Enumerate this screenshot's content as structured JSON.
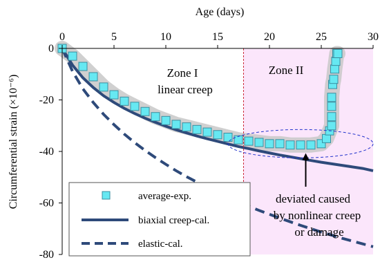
{
  "chart_data": {
    "type": "line",
    "xlabel": "Age (days)",
    "ylabel": "Circumferential strain (×10⁻⁶)",
    "xlim": [
      0,
      30
    ],
    "ylim": [
      -80,
      0
    ],
    "x_ticks": [
      "0",
      "5",
      "10",
      "15",
      "20",
      "25",
      "30"
    ],
    "y_ticks": [
      "0",
      "-20",
      "-40",
      "-60",
      "-80"
    ],
    "x_tick_values": [
      0,
      5,
      10,
      15,
      20,
      25,
      30
    ],
    "y_tick_values": [
      0,
      -20,
      -40,
      -60,
      -80
    ],
    "x_axis_position": "top",
    "grid": false,
    "zone_boundary_x": 17.5,
    "zone2_color": "#fbe6fb",
    "zones": [
      {
        "name": "Zone I",
        "subtitle": "linear creep"
      },
      {
        "name": "Zone II",
        "subtitle": ""
      }
    ],
    "annotation": {
      "lines": [
        "deviated caused",
        "by nonlinear creep",
        "or damage"
      ],
      "arrow_target": [
        23.5,
        -38
      ]
    },
    "ellipse": {
      "center": [
        23,
        -37
      ],
      "rx": 7,
      "ry": 5.5
    },
    "legend_position": "bottom-left",
    "series": [
      {
        "name": "average-exp.",
        "style": "marker-square",
        "color": "#66e8f2",
        "x": [
          0,
          1,
          2,
          3,
          4,
          5,
          6,
          7,
          8,
          9,
          10,
          11,
          12,
          13,
          14,
          15,
          16,
          17,
          18,
          19,
          20,
          21,
          22,
          23,
          24,
          25,
          25.5,
          25.8,
          26,
          26,
          26,
          26,
          26.1,
          26.2,
          26.3,
          26.4,
          26.5,
          26.6
        ],
        "y": [
          0,
          -3,
          -7,
          -11,
          -15,
          -18,
          -20.5,
          -22.5,
          -24.5,
          -26.5,
          -28,
          -29.5,
          -30.5,
          -31.5,
          -32.5,
          -33.5,
          -34.5,
          -35.5,
          -36,
          -36.5,
          -37,
          -37,
          -37.5,
          -37.5,
          -37.5,
          -37,
          -35,
          -32,
          -30,
          -26.5,
          -22.5,
          -19,
          -14,
          -12,
          -8,
          -5,
          -2,
          -2
        ],
        "band_color": "#c8c8c8"
      },
      {
        "name": "biaxial creep-cal.",
        "style": "solid",
        "color": "#2e4a7a",
        "x": [
          0,
          1,
          2,
          3,
          4,
          5,
          6,
          7,
          8,
          9,
          10,
          11,
          12,
          13,
          14,
          15,
          16,
          17,
          18,
          19,
          20,
          21,
          22,
          23,
          24,
          25,
          26,
          27,
          28,
          29,
          30
        ],
        "y": [
          0,
          -6.5,
          -11.4,
          -15.2,
          -18.4,
          -21,
          -23.3,
          -25.3,
          -27.1,
          -28.7,
          -30.2,
          -31.6,
          -32.8,
          -34,
          -35.1,
          -36.1,
          -37.1,
          -38.1,
          -38.9,
          -39.8,
          -40.6,
          -41.4,
          -42.1,
          -42.8,
          -43.5,
          -44.2,
          -44.8,
          -45.4,
          -46,
          -46.6,
          -47.5
        ]
      },
      {
        "name": "elastic-cal.",
        "style": "dashed",
        "color": "#2e4a7a",
        "x": [
          0,
          1,
          2,
          3,
          4,
          5,
          6,
          7,
          8,
          9,
          10,
          11,
          12,
          13,
          14,
          15,
          16,
          17,
          18,
          19,
          20,
          21,
          22,
          23,
          24,
          25,
          26,
          27,
          28,
          29,
          30
        ],
        "y": [
          0,
          -8.9,
          -15.7,
          -21,
          -25.6,
          -29.6,
          -33.3,
          -36.6,
          -39.6,
          -42.4,
          -45,
          -47.5,
          -49.8,
          -51.9,
          -54,
          -55.9,
          -57.8,
          -59.6,
          -61.3,
          -62.9,
          -64.4,
          -65.9,
          -67.3,
          -68.7,
          -70,
          -71.3,
          -72.5,
          -73.7,
          -74.8,
          -75.9,
          -77
        ]
      }
    ]
  }
}
